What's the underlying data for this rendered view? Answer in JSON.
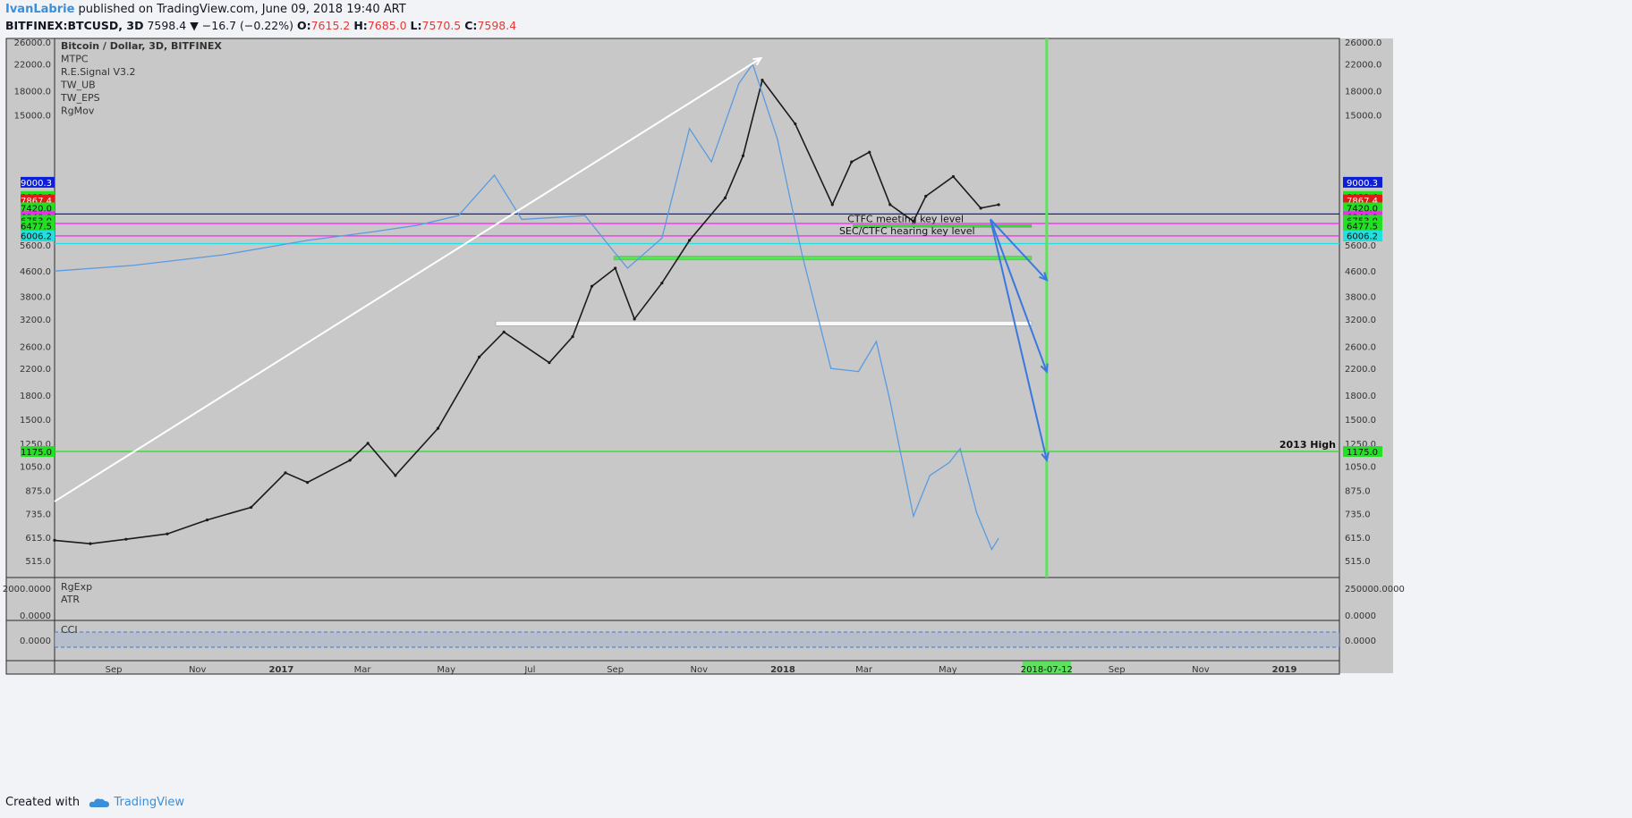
{
  "header": {
    "author": "IvanLabrie",
    "published": "published on TradingView.com, June 09, 2018 19:40 ART",
    "symbol": "BITFINEX:BTCUSD, 3D",
    "last": "7598.4",
    "change": "▼ −16.7 (−0.22%)",
    "open_label": "O:",
    "open": "7615.2",
    "high_label": "H:",
    "high": "7685.0",
    "low_label": "L:",
    "low": "7570.5",
    "close_label": "C:",
    "close": "7598.4"
  },
  "legend": [
    "Bitcoin / Dollar, 3D, BITFINEX",
    "MTPC",
    "R.E.Signal V3.2",
    "TW_UB",
    "TW_EPS",
    "RgMov"
  ],
  "price_axis": {
    "ticks": [
      {
        "v": 26000,
        "t": "26000.0"
      },
      {
        "v": 22000,
        "t": "22000.0"
      },
      {
        "v": 18000,
        "t": "18000.0"
      },
      {
        "v": 15000,
        "t": "15000.0"
      },
      {
        "v": 5600,
        "t": "5600.0"
      },
      {
        "v": 4600,
        "t": "4600.0"
      },
      {
        "v": 3800,
        "t": "3800.0"
      },
      {
        "v": 3200,
        "t": "3200.0"
      },
      {
        "v": 2600,
        "t": "2600.0"
      },
      {
        "v": 2200,
        "t": "2200.0"
      },
      {
        "v": 1800,
        "t": "1800.0"
      },
      {
        "v": 1500,
        "t": "1500.0"
      },
      {
        "v": 1250,
        "t": "1250.0"
      },
      {
        "v": 1050,
        "t": "1050.0"
      },
      {
        "v": 875,
        "t": "875.0"
      },
      {
        "v": 735,
        "t": "735.0"
      },
      {
        "v": 615,
        "t": "615.0"
      },
      {
        "v": 515,
        "t": "515.0"
      }
    ],
    "badges": [
      {
        "v": 9000.3,
        "t": "9000.3",
        "color": "#0d1fd6"
      },
      {
        "v": 8083.6,
        "t": "8083.6",
        "color": "#22e022"
      },
      {
        "v": 7880.0,
        "t": "7880.0",
        "color": "#ff1fff"
      },
      {
        "v": 7867.4,
        "t": "7867.4",
        "color": "#e01919"
      },
      {
        "v": 7420.0,
        "t": "7420.0",
        "color": "#22e022"
      },
      {
        "v": 6940.0,
        "t": "6940.0",
        "color": "#ff1fff"
      },
      {
        "v": 6753.0,
        "t": "6753.0",
        "color": "#22e022"
      },
      {
        "v": 6477.5,
        "t": "6477.5",
        "color": "#22e022"
      },
      {
        "v": 6000.0,
        "t": "6000.0",
        "color": "#ff1fff"
      },
      {
        "v": 6006.2,
        "t": "6006.2",
        "color": "#22e0e0"
      },
      {
        "v": 1175.0,
        "t": "1175.0",
        "color": "#22e022"
      }
    ],
    "left_badges_note": "",
    "tri_top_value": 22000,
    "triangles": {
      "right": "7429.0"
    }
  },
  "time_axis": {
    "labels": [
      {
        "d": "2016-09-01",
        "t": "Sep",
        "bold": false
      },
      {
        "d": "2016-11-01",
        "t": "Nov",
        "bold": false
      },
      {
        "d": "2017-01-01",
        "t": "2017",
        "bold": true
      },
      {
        "d": "2017-03-01",
        "t": "Mar",
        "bold": false
      },
      {
        "d": "2017-05-01",
        "t": "May",
        "bold": false
      },
      {
        "d": "2017-07-01",
        "t": "Jul",
        "bold": false
      },
      {
        "d": "2017-09-01",
        "t": "Sep",
        "bold": false
      },
      {
        "d": "2017-11-01",
        "t": "Nov",
        "bold": false
      },
      {
        "d": "2018-01-01",
        "t": "2018",
        "bold": true
      },
      {
        "d": "2018-03-01",
        "t": "Mar",
        "bold": false
      },
      {
        "d": "2018-05-01",
        "t": "May",
        "bold": false
      },
      {
        "d": "2018-09-01",
        "t": "Sep",
        "bold": false
      },
      {
        "d": "2018-11-01",
        "t": "Nov",
        "bold": false
      },
      {
        "d": "2019-01-01",
        "t": "2019",
        "bold": true
      }
    ],
    "marker": {
      "d": "2018-07-12",
      "t": "2018-07-12"
    }
  },
  "annotations": {
    "ctfc": "CTFC meeting key level",
    "sec": "SEC/CTFC hearing key level",
    "high2013": "2013 High",
    "ctfc_price": 7080,
    "sec_price": 6000,
    "high2013_price": 1175.0,
    "zones": [
      {
        "from": "2017-08-31",
        "to": "2018-07-01",
        "p1": 5000,
        "p2": 5150,
        "color": "#3df03d"
      },
      {
        "from": "2017-06-06",
        "to": "2018-07-01",
        "p1": 3040,
        "p2": 3150,
        "color": "#ffffff"
      },
      {
        "from": "2018-02-21",
        "to": "2018-07-01",
        "p1": 6420,
        "p2": 6530,
        "color": "#22e022"
      }
    ]
  },
  "chart_data": {
    "type": "line",
    "symbol": "BITFINEX:BTCUSD",
    "interval": "3D",
    "y_scale": "log",
    "ylim": [
      460,
      30000
    ],
    "xlim": [
      "2016-07-20",
      "2019-02-10"
    ],
    "series": [
      {
        "name": "",
        "x": [
          "2016-07-20",
          "2016-08-15",
          "2016-09-10",
          "2016-10-10",
          "2016-11-08",
          "2016-12-10",
          "2017-01-04",
          "2017-01-20",
          "2017-02-20",
          "2017-03-05",
          "2017-03-25",
          "2017-04-25",
          "2017-05-25",
          "2017-06-12",
          "2017-07-15",
          "2017-08-01",
          "2017-08-15",
          "2017-09-01",
          "2017-09-15",
          "2017-10-05",
          "2017-10-25",
          "2017-11-20",
          "2017-12-03",
          "2017-12-17",
          "2018-01-10",
          "2018-02-06",
          "2018-02-20",
          "2018-03-05",
          "2018-03-20",
          "2018-04-06",
          "2018-04-15",
          "2018-05-05",
          "2018-05-25",
          "2018-06-07"
        ],
        "values": [
          600,
          585,
          605,
          630,
          700,
          770,
          1000,
          930,
          1100,
          1250,
          980,
          1400,
          2400,
          2900,
          2300,
          2800,
          4100,
          4700,
          3200,
          4200,
          5800,
          8000,
          11000,
          19500,
          14000,
          7600,
          10500,
          11300,
          7600,
          6700,
          8100,
          9400,
          7400,
          7598
        ]
      },
      {
        "name": "",
        "x": [
          "2016-07-20",
          "2016-09-15",
          "2016-11-20",
          "2017-01-20",
          "2017-03-10",
          "2017-04-10",
          "2017-05-10",
          "2017-06-05",
          "2017-06-25",
          "2017-07-20",
          "2017-08-10",
          "2017-08-30",
          "2017-09-10",
          "2017-10-05",
          "2017-10-25",
          "2017-11-10",
          "2017-11-30",
          "2017-12-10",
          "2017-12-28",
          "2018-01-15",
          "2018-02-05",
          "2018-02-25",
          "2018-03-10",
          "2018-03-20",
          "2018-04-06",
          "2018-04-18",
          "2018-05-02",
          "2018-05-10",
          "2018-05-22",
          "2018-06-02",
          "2018-06-07"
        ],
        "values": [
          4600,
          4800,
          5200,
          5800,
          6200,
          6500,
          7000,
          9500,
          6800,
          6900,
          7000,
          5400,
          4700,
          5900,
          13500,
          10500,
          19000,
          22000,
          12500,
          5200,
          2200,
          2150,
          2700,
          1720,
          720,
          980,
          1080,
          1200,
          740,
          560,
          610
        ]
      }
    ],
    "arrows": [
      {
        "from": [
          "2016-07-20",
          805
        ],
        "to": [
          "2017-12-16",
          23000
        ],
        "color": "#ffffff"
      },
      {
        "from": [
          "2018-06-01",
          6800
        ],
        "to": [
          "2018-07-12",
          4300
        ],
        "color": "#3a78e0"
      },
      {
        "from": [
          "2018-06-01",
          6800
        ],
        "to": [
          "2018-07-12",
          2150
        ],
        "color": "#3a78e0"
      },
      {
        "from": [
          "2018-06-01",
          6800
        ],
        "to": [
          "2018-07-12",
          1100
        ],
        "color": "#3a78e0"
      }
    ],
    "h_lines": [
      {
        "v": 7080,
        "color": "#0d1fd6"
      },
      {
        "v": 6590,
        "color": "#ff1fff"
      },
      {
        "v": 6000,
        "color": "#ff1fff"
      },
      {
        "v": 5660,
        "color": "#22e0e0"
      },
      {
        "v": 1175,
        "color": "#22e022"
      }
    ],
    "v_lines": [
      {
        "d": "2018-07-12",
        "color": "#5fe05f"
      }
    ]
  },
  "volume_pane": {
    "labels": [
      "RgExp",
      "ATR"
    ],
    "left_ticks": [
      "2000.0000",
      "0.0000"
    ],
    "right_ticks": [
      "250000.0000",
      "0.0000"
    ]
  },
  "cci_pane": {
    "label": "CCI",
    "left_tick": "0.0000",
    "right_tick": "0.0000"
  },
  "footer": {
    "created_with": "Created with",
    "brand": "TradingView"
  }
}
